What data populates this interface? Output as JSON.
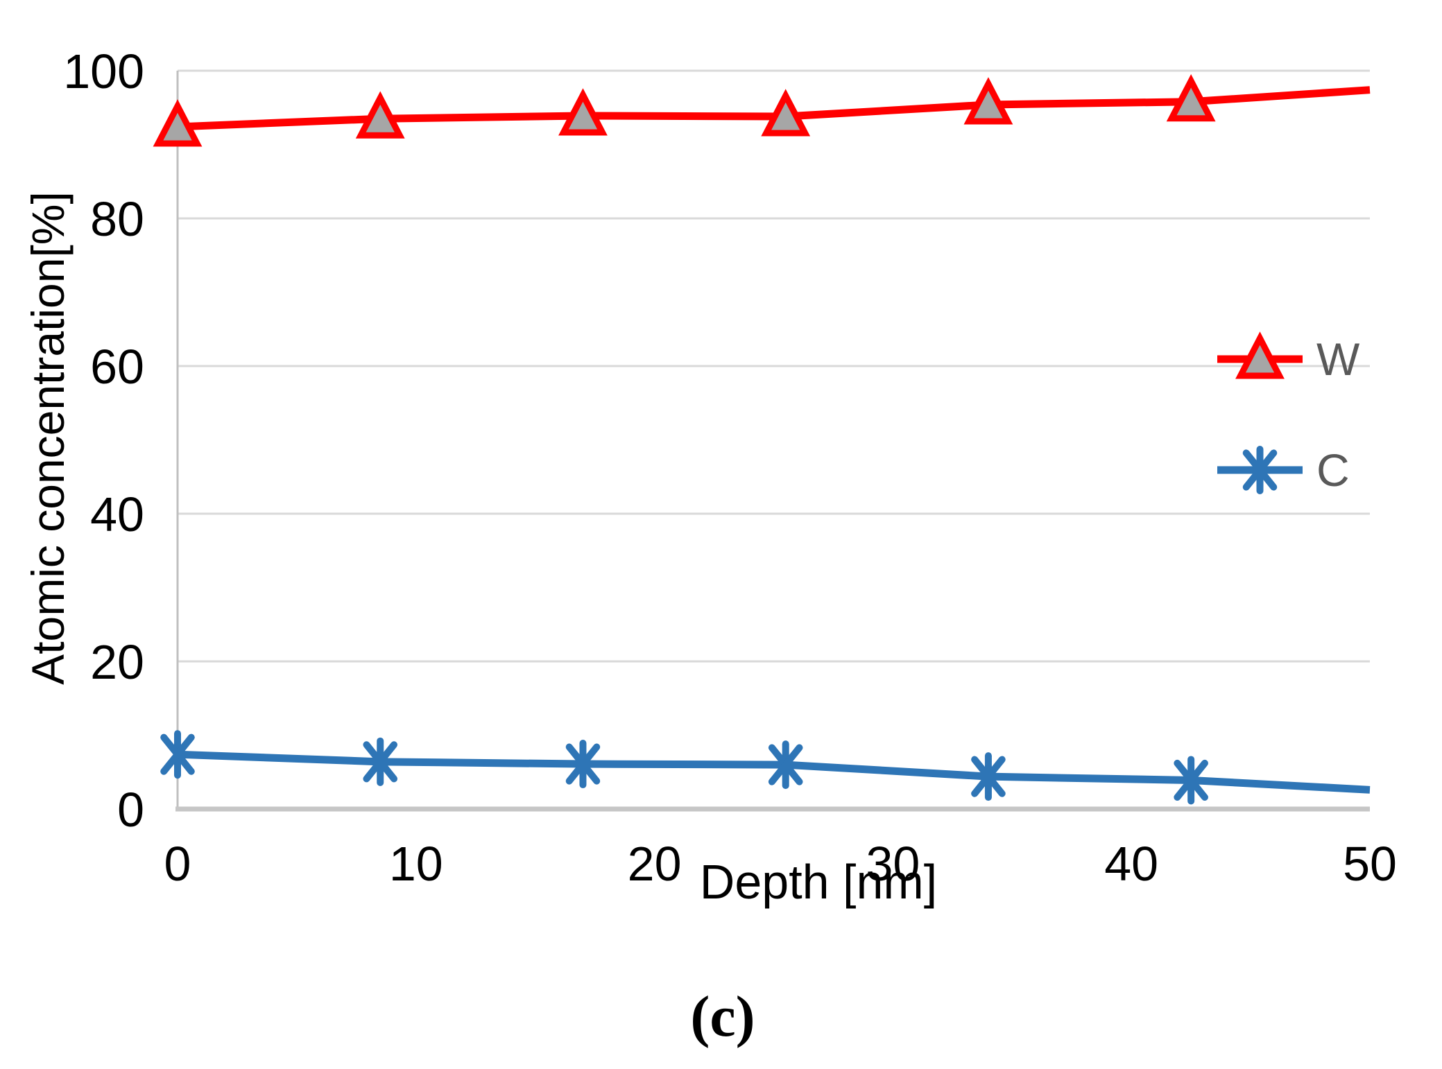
{
  "caption": "(c)",
  "styles": {
    "background": "#ffffff",
    "grid_color": "#d9d9d9",
    "y_axis_line_color": "#bfbfbf",
    "x_axis_line_color": "#c6c6c6",
    "tick_text_color": "#000000",
    "legend_text_color": "#595959",
    "w_series_color": "#ff0000",
    "w_marker_fill": "#a6a6a6",
    "c_series_color": "#2e75b6"
  },
  "chart_data": {
    "type": "line",
    "title": "",
    "xlabel": "Depth [nm]",
    "ylabel": "Atomic concentration[%]",
    "xlim": [
      0,
      50
    ],
    "ylim": [
      0,
      100
    ],
    "x_ticks": [
      0,
      10,
      20,
      30,
      40,
      50
    ],
    "y_ticks": [
      0,
      20,
      40,
      60,
      80,
      100
    ],
    "grid": "horizontal",
    "legend_position": "inside-right",
    "x": [
      0,
      8.5,
      17,
      25.5,
      34,
      42.5,
      50
    ],
    "series": [
      {
        "name": "W",
        "color": "#ff0000",
        "marker": "triangle",
        "marker_fill": "#a6a6a6",
        "values": [
          92.4,
          93.5,
          93.9,
          93.8,
          95.4,
          95.8,
          97.4
        ]
      },
      {
        "name": "C",
        "color": "#2e75b6",
        "marker": "asterisk",
        "marker_fill": "#2e75b6",
        "values": [
          7.4,
          6.4,
          6.1,
          6.0,
          4.4,
          3.9,
          2.6
        ]
      }
    ],
    "marker_on_last_point": false
  }
}
